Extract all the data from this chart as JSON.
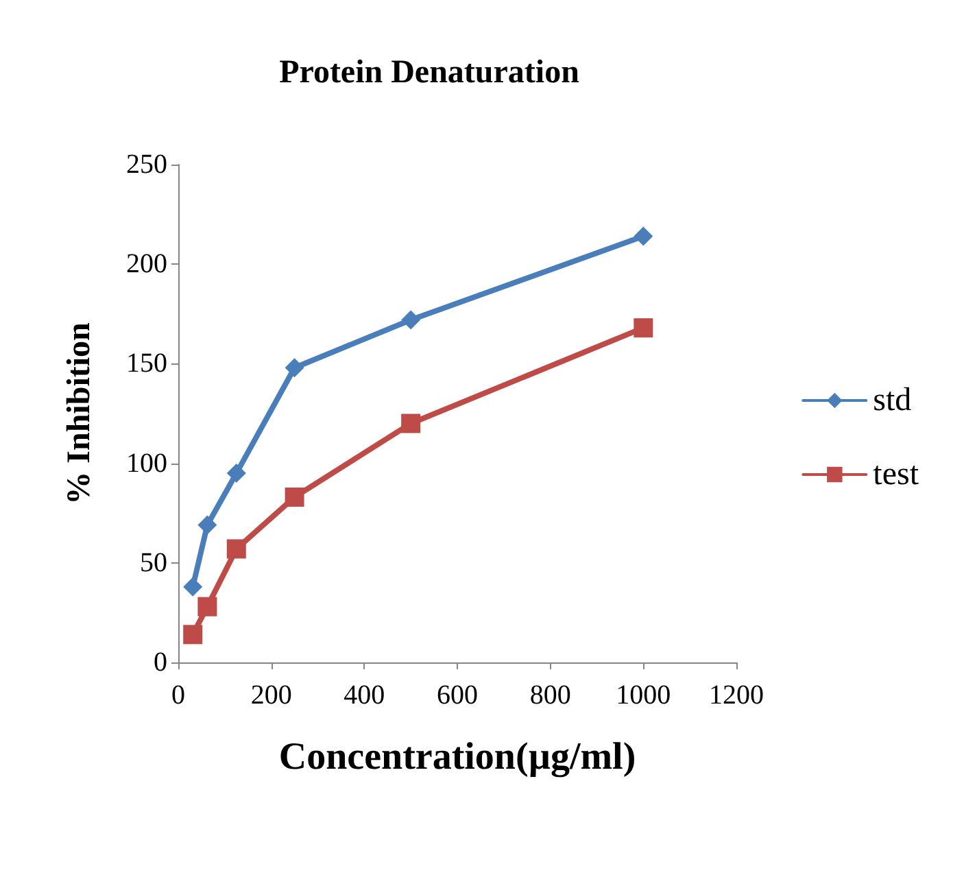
{
  "chart_data": {
    "type": "line",
    "title": "Protein Denaturation",
    "xlabel": "Concentration(µg/ml)",
    "ylabel": "% Inhibition",
    "x": [
      31.25,
      62.5,
      125,
      250,
      500,
      1000
    ],
    "series": [
      {
        "name": "std",
        "color": "#4a7ebb",
        "marker": "diamond",
        "values": [
          38,
          69,
          95,
          148,
          172,
          214
        ]
      },
      {
        "name": "test",
        "color": "#be4b48",
        "marker": "square",
        "values": [
          14,
          28,
          57,
          83,
          120,
          168
        ]
      }
    ],
    "xlim": [
      0,
      1200
    ],
    "xticks": [
      0,
      200,
      400,
      600,
      800,
      1000,
      1200
    ],
    "ylim": [
      0,
      250
    ],
    "yticks": [
      0,
      50,
      100,
      150,
      200,
      250
    ],
    "grid": false,
    "legend": "right",
    "line_style": "solid"
  }
}
